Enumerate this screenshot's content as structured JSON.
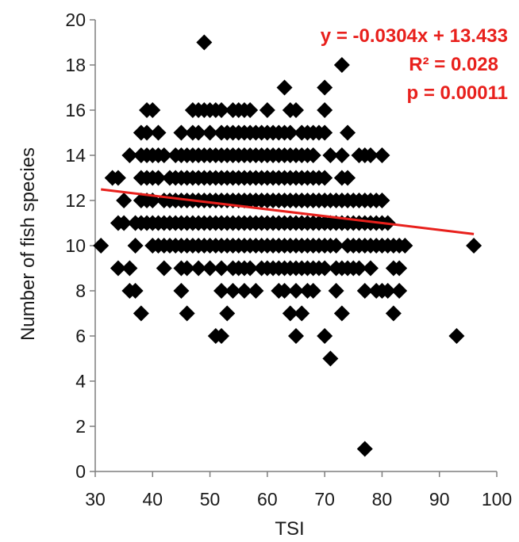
{
  "chart_data": {
    "type": "scatter",
    "xlabel": "TSI",
    "ylabel": "Number of fish species",
    "xlim": [
      30,
      100
    ],
    "ylim": [
      0,
      20
    ],
    "xticks": [
      30,
      40,
      50,
      60,
      70,
      80,
      90,
      100
    ],
    "yticks": [
      0,
      2,
      4,
      6,
      8,
      10,
      12,
      14,
      16,
      18,
      20
    ],
    "grid": false,
    "marker": "diamond",
    "marker_color": "#000000",
    "trendline": {
      "slope": -0.0304,
      "intercept": 13.433,
      "x_range": [
        31,
        96
      ],
      "color": "#e8201c"
    },
    "annotations": {
      "equation": "y = -0.0304x + 13.433",
      "r2": "R² = 0.028",
      "p": "p = 0.00011"
    },
    "series": [
      {
        "points": [
          [
            31,
            10
          ],
          [
            33,
            13
          ],
          [
            34,
            13
          ],
          [
            35,
            12
          ],
          [
            34,
            11
          ],
          [
            34,
            9
          ],
          [
            35,
            11
          ],
          [
            36,
            14
          ],
          [
            36,
            9
          ],
          [
            36,
            8
          ],
          [
            37,
            8
          ],
          [
            37,
            10
          ],
          [
            37,
            11
          ],
          [
            38,
            15
          ],
          [
            38,
            14
          ],
          [
            38,
            13
          ],
          [
            38,
            12
          ],
          [
            38,
            11
          ],
          [
            38,
            7
          ],
          [
            39,
            15
          ],
          [
            39,
            16
          ],
          [
            39,
            14
          ],
          [
            39,
            13
          ],
          [
            39,
            12
          ],
          [
            39,
            11
          ],
          [
            40,
            16
          ],
          [
            40,
            14
          ],
          [
            40,
            13
          ],
          [
            40,
            12
          ],
          [
            40,
            11
          ],
          [
            40,
            10
          ],
          [
            41,
            15
          ],
          [
            41,
            14
          ],
          [
            41,
            13
          ],
          [
            41,
            11
          ],
          [
            41,
            10
          ],
          [
            42,
            14
          ],
          [
            42,
            12
          ],
          [
            42,
            11
          ],
          [
            42,
            10
          ],
          [
            42,
            9
          ],
          [
            43,
            13
          ],
          [
            43,
            12
          ],
          [
            43,
            11
          ],
          [
            43,
            10
          ],
          [
            44,
            14
          ],
          [
            44,
            13
          ],
          [
            44,
            12
          ],
          [
            44,
            11
          ],
          [
            44,
            10
          ],
          [
            45,
            15
          ],
          [
            45,
            14
          ],
          [
            45,
            13
          ],
          [
            45,
            12
          ],
          [
            45,
            11
          ],
          [
            45,
            10
          ],
          [
            45,
            9
          ],
          [
            45,
            8
          ],
          [
            46,
            14
          ],
          [
            46,
            13
          ],
          [
            46,
            12
          ],
          [
            46,
            11
          ],
          [
            46,
            10
          ],
          [
            46,
            9
          ],
          [
            46,
            7
          ],
          [
            47,
            16
          ],
          [
            47,
            15
          ],
          [
            47,
            14
          ],
          [
            47,
            13
          ],
          [
            47,
            12
          ],
          [
            47,
            11
          ],
          [
            47,
            10
          ],
          [
            48,
            16
          ],
          [
            48,
            15
          ],
          [
            48,
            14
          ],
          [
            48,
            13
          ],
          [
            48,
            12
          ],
          [
            48,
            11
          ],
          [
            48,
            10
          ],
          [
            48,
            9
          ],
          [
            49,
            19
          ],
          [
            49,
            16
          ],
          [
            49,
            14
          ],
          [
            49,
            13
          ],
          [
            49,
            12
          ],
          [
            49,
            11
          ],
          [
            49,
            10
          ],
          [
            50,
            16
          ],
          [
            50,
            15
          ],
          [
            50,
            14
          ],
          [
            50,
            13
          ],
          [
            50,
            12
          ],
          [
            50,
            11
          ],
          [
            50,
            10
          ],
          [
            50,
            9
          ],
          [
            51,
            16
          ],
          [
            51,
            14
          ],
          [
            51,
            13
          ],
          [
            51,
            12
          ],
          [
            51,
            11
          ],
          [
            51,
            10
          ],
          [
            51,
            6
          ],
          [
            52,
            16
          ],
          [
            52,
            15
          ],
          [
            52,
            14
          ],
          [
            52,
            13
          ],
          [
            52,
            12
          ],
          [
            52,
            11
          ],
          [
            52,
            10
          ],
          [
            52,
            9
          ],
          [
            52,
            8
          ],
          [
            52,
            6
          ],
          [
            53,
            15
          ],
          [
            53,
            14
          ],
          [
            53,
            13
          ],
          [
            53,
            12
          ],
          [
            53,
            11
          ],
          [
            53,
            10
          ],
          [
            53,
            7
          ],
          [
            54,
            16
          ],
          [
            54,
            15
          ],
          [
            54,
            14
          ],
          [
            54,
            13
          ],
          [
            54,
            12
          ],
          [
            54,
            11
          ],
          [
            54,
            10
          ],
          [
            54,
            9
          ],
          [
            54,
            8
          ],
          [
            55,
            16
          ],
          [
            55,
            15
          ],
          [
            55,
            14
          ],
          [
            55,
            13
          ],
          [
            55,
            12
          ],
          [
            55,
            11
          ],
          [
            55,
            10
          ],
          [
            55,
            9
          ],
          [
            56,
            16
          ],
          [
            56,
            15
          ],
          [
            56,
            14
          ],
          [
            56,
            13
          ],
          [
            56,
            12
          ],
          [
            56,
            11
          ],
          [
            56,
            10
          ],
          [
            56,
            9
          ],
          [
            56,
            8
          ],
          [
            57,
            16
          ],
          [
            57,
            15
          ],
          [
            57,
            14
          ],
          [
            57,
            13
          ],
          [
            57,
            12
          ],
          [
            57,
            11
          ],
          [
            57,
            10
          ],
          [
            57,
            9
          ],
          [
            58,
            15
          ],
          [
            58,
            14
          ],
          [
            58,
            13
          ],
          [
            58,
            12
          ],
          [
            58,
            11
          ],
          [
            58,
            10
          ],
          [
            58,
            8
          ],
          [
            59,
            15
          ],
          [
            59,
            14
          ],
          [
            59,
            13
          ],
          [
            59,
            12
          ],
          [
            59,
            11
          ],
          [
            59,
            10
          ],
          [
            59,
            9
          ],
          [
            60,
            16
          ],
          [
            60,
            15
          ],
          [
            60,
            14
          ],
          [
            60,
            13
          ],
          [
            60,
            12
          ],
          [
            60,
            11
          ],
          [
            60,
            10
          ],
          [
            60,
            9
          ],
          [
            61,
            15
          ],
          [
            61,
            14
          ],
          [
            61,
            13
          ],
          [
            61,
            12
          ],
          [
            61,
            11
          ],
          [
            61,
            10
          ],
          [
            61,
            9
          ],
          [
            62,
            15
          ],
          [
            62,
            14
          ],
          [
            62,
            13
          ],
          [
            62,
            12
          ],
          [
            62,
            11
          ],
          [
            62,
            10
          ],
          [
            62,
            9
          ],
          [
            62,
            8
          ],
          [
            63,
            17
          ],
          [
            63,
            15
          ],
          [
            63,
            14
          ],
          [
            63,
            13
          ],
          [
            63,
            12
          ],
          [
            63,
            11
          ],
          [
            63,
            10
          ],
          [
            63,
            9
          ],
          [
            63,
            8
          ],
          [
            64,
            16
          ],
          [
            64,
            15
          ],
          [
            64,
            14
          ],
          [
            64,
            13
          ],
          [
            64,
            12
          ],
          [
            64,
            11
          ],
          [
            64,
            10
          ],
          [
            64,
            9
          ],
          [
            64,
            7
          ],
          [
            65,
            16
          ],
          [
            65,
            14
          ],
          [
            65,
            13
          ],
          [
            65,
            12
          ],
          [
            65,
            11
          ],
          [
            65,
            10
          ],
          [
            65,
            9
          ],
          [
            65,
            8
          ],
          [
            65,
            6
          ],
          [
            66,
            15
          ],
          [
            66,
            14
          ],
          [
            66,
            13
          ],
          [
            66,
            12
          ],
          [
            66,
            11
          ],
          [
            66,
            10
          ],
          [
            66,
            9
          ],
          [
            66,
            7
          ],
          [
            67,
            15
          ],
          [
            67,
            14
          ],
          [
            67,
            13
          ],
          [
            67,
            12
          ],
          [
            67,
            11
          ],
          [
            67,
            10
          ],
          [
            67,
            9
          ],
          [
            67,
            8
          ],
          [
            68,
            15
          ],
          [
            68,
            14
          ],
          [
            68,
            13
          ],
          [
            68,
            12
          ],
          [
            68,
            11
          ],
          [
            68,
            10
          ],
          [
            68,
            9
          ],
          [
            68,
            8
          ],
          [
            69,
            15
          ],
          [
            69,
            13
          ],
          [
            69,
            12
          ],
          [
            69,
            11
          ],
          [
            69,
            10
          ],
          [
            69,
            9
          ],
          [
            70,
            17
          ],
          [
            70,
            16
          ],
          [
            70,
            15
          ],
          [
            70,
            13
          ],
          [
            70,
            12
          ],
          [
            70,
            11
          ],
          [
            70,
            10
          ],
          [
            70,
            9
          ],
          [
            70,
            6
          ],
          [
            71,
            14
          ],
          [
            71,
            12
          ],
          [
            71,
            11
          ],
          [
            71,
            10
          ],
          [
            71,
            5
          ],
          [
            72,
            12
          ],
          [
            72,
            11
          ],
          [
            72,
            10
          ],
          [
            72,
            9
          ],
          [
            72,
            8
          ],
          [
            73,
            18
          ],
          [
            73,
            14
          ],
          [
            73,
            13
          ],
          [
            73,
            12
          ],
          [
            73,
            11
          ],
          [
            73,
            9
          ],
          [
            73,
            7
          ],
          [
            74,
            15
          ],
          [
            74,
            13
          ],
          [
            74,
            12
          ],
          [
            74,
            11
          ],
          [
            74,
            10
          ],
          [
            74,
            9
          ],
          [
            75,
            12
          ],
          [
            75,
            11
          ],
          [
            75,
            10
          ],
          [
            75,
            9
          ],
          [
            76,
            14
          ],
          [
            76,
            12
          ],
          [
            76,
            11
          ],
          [
            76,
            10
          ],
          [
            76,
            9
          ],
          [
            77,
            14
          ],
          [
            77,
            12
          ],
          [
            77,
            11
          ],
          [
            77,
            10
          ],
          [
            77,
            8
          ],
          [
            77,
            1
          ],
          [
            78,
            14
          ],
          [
            78,
            12
          ],
          [
            78,
            11
          ],
          [
            78,
            10
          ],
          [
            78,
            9
          ],
          [
            79,
            12
          ],
          [
            79,
            11
          ],
          [
            79,
            10
          ],
          [
            79,
            8
          ],
          [
            80,
            14
          ],
          [
            80,
            12
          ],
          [
            80,
            11
          ],
          [
            80,
            10
          ],
          [
            80,
            8
          ],
          [
            81,
            11
          ],
          [
            81,
            10
          ],
          [
            81,
            8
          ],
          [
            82,
            10
          ],
          [
            82,
            9
          ],
          [
            82,
            7
          ],
          [
            83,
            10
          ],
          [
            83,
            9
          ],
          [
            83,
            8
          ],
          [
            84,
            10
          ],
          [
            93,
            6
          ],
          [
            96,
            10
          ]
        ]
      }
    ]
  }
}
